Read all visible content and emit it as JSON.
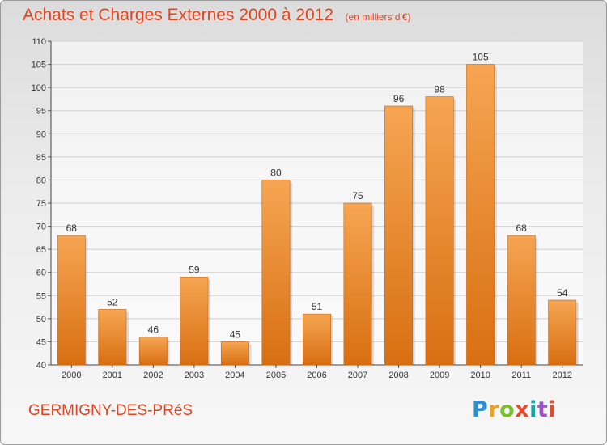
{
  "chart_data": {
    "type": "bar",
    "title": "Achats et Charges Externes 2000 à 2012",
    "subtitle": "(en milliers d'€)",
    "xlabel": "",
    "ylabel": "",
    "categories": [
      "2000",
      "2001",
      "2002",
      "2003",
      "2004",
      "2005",
      "2006",
      "2007",
      "2008",
      "2009",
      "2010",
      "2011",
      "2012"
    ],
    "values": [
      68,
      52,
      46,
      59,
      45,
      80,
      51,
      75,
      96,
      98,
      105,
      68,
      54
    ],
    "ylim": [
      40,
      110
    ],
    "yticks": [
      40,
      45,
      50,
      55,
      60,
      65,
      70,
      75,
      80,
      85,
      90,
      95,
      100,
      105,
      110
    ],
    "grid": true,
    "data_labels": true,
    "bar_color": "#f08a2a"
  },
  "footer": {
    "commune": "GERMIGNY-DES-PRéS",
    "brand": "Proxiti"
  }
}
